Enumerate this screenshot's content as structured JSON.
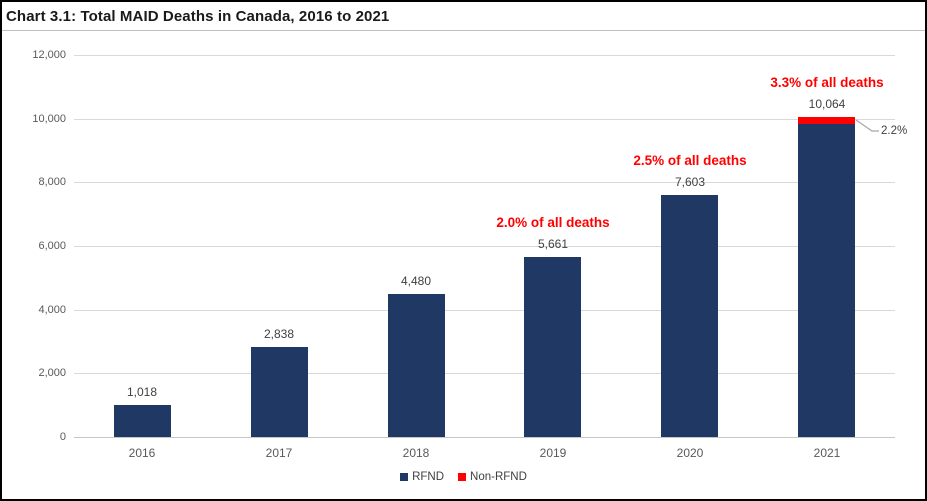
{
  "header": {
    "title": "Chart 3.1: Total MAID Deaths in Canada, 2016 to 2021"
  },
  "chart_data": {
    "type": "bar",
    "stacked": true,
    "title": "Chart 3.1: Total MAID Deaths in Canada, 2016 to 2021",
    "xlabel": "",
    "ylabel": "",
    "categories": [
      "2016",
      "2017",
      "2018",
      "2019",
      "2020",
      "2021"
    ],
    "totals": [
      1018,
      2838,
      4480,
      5661,
      7603,
      10064
    ],
    "total_labels": [
      "1,018",
      "2,838",
      "4,480",
      "5,661",
      "7,603",
      "10,064"
    ],
    "series": [
      {
        "name": "RFND",
        "color": "#1F3864",
        "values": [
          1018,
          2838,
          4480,
          5661,
          7603,
          9843
        ]
      },
      {
        "name": "Non-RFND",
        "color": "#FF0000",
        "values": [
          0,
          0,
          0,
          0,
          0,
          221
        ]
      }
    ],
    "annotations": [
      {
        "text": "2.0% of all deaths",
        "category": "2019",
        "color": "#FF0000"
      },
      {
        "text": "2.5% of all deaths",
        "category": "2020",
        "color": "#FF0000"
      },
      {
        "text": "3.3% of all deaths",
        "category": "2021",
        "color": "#FF0000"
      }
    ],
    "callout": {
      "text": "2.2%",
      "category": "2021",
      "series": "Non-RFND"
    },
    "ylim": [
      0,
      12000
    ],
    "yticks": [
      0,
      2000,
      4000,
      6000,
      8000,
      10000,
      12000
    ],
    "ytick_labels": [
      "0",
      "2,000",
      "4,000",
      "6,000",
      "8,000",
      "10,000",
      "12,000"
    ],
    "grid": true,
    "legend": {
      "position": "bottom",
      "entries": [
        "RFND",
        "Non-RFND"
      ]
    },
    "colors": {
      "grid": "#D9D9D9",
      "axis_text": "#595959",
      "value_label": "#404040",
      "annotation": "#FF0000",
      "leader_line": "#A6A6A6"
    }
  }
}
